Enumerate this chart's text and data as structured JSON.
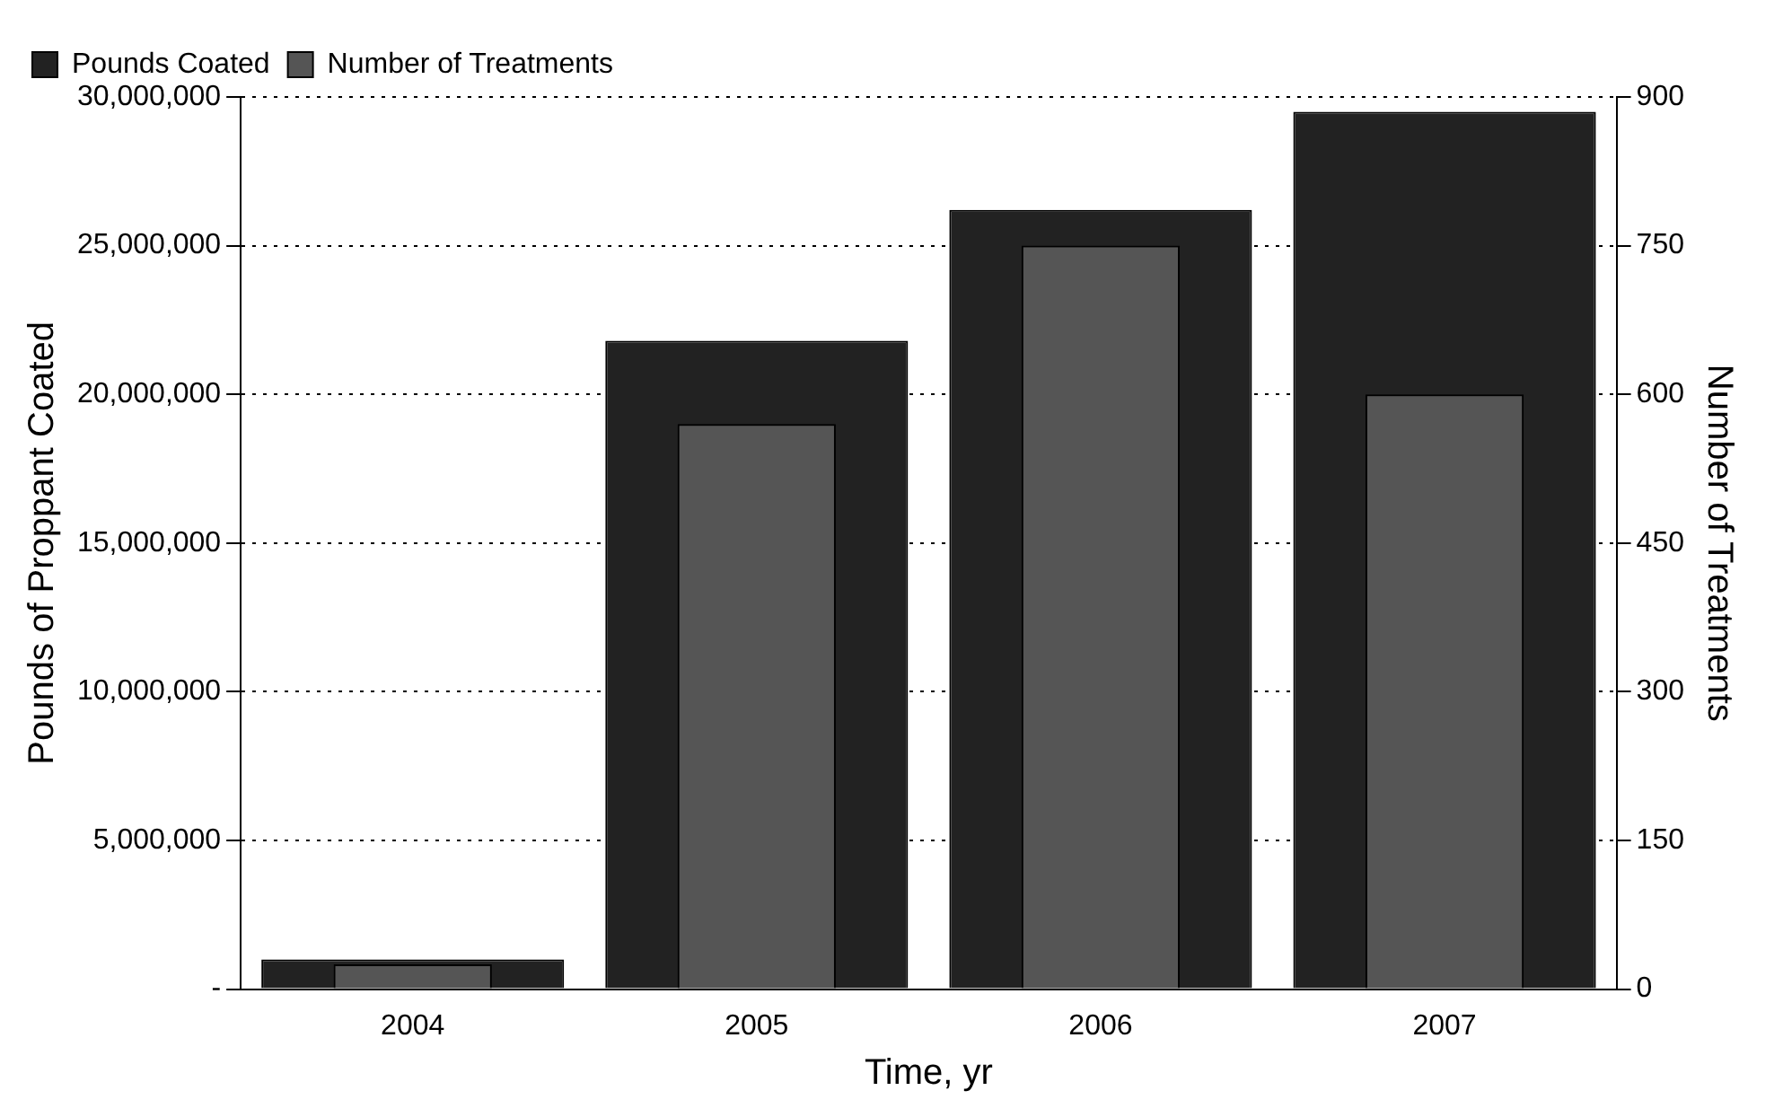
{
  "chart_data": {
    "type": "bar",
    "xlabel": "Time, yr",
    "ylabel": "Pounds of Proppant Coated",
    "y2label": "Number of Treatments",
    "categories": [
      "2004",
      "2005",
      "2006",
      "2007"
    ],
    "series": [
      {
        "name": "Pounds Coated",
        "color": "#222222",
        "values": [
          1000000,
          21800000,
          26200000,
          29500000
        ]
      },
      {
        "name": "Number of Treatments",
        "color": "#555555",
        "axis": "y2",
        "values": [
          25,
          570,
          750,
          600
        ]
      }
    ],
    "ylim": [
      0,
      30000000
    ],
    "yticks": [
      {
        "value": 0,
        "label": "-"
      },
      {
        "value": 5000000,
        "label": "5,000,000"
      },
      {
        "value": 10000000,
        "label": "10,000,000"
      },
      {
        "value": 15000000,
        "label": "15,000,000"
      },
      {
        "value": 20000000,
        "label": "20,000,000"
      },
      {
        "value": 25000000,
        "label": "25,000,000"
      },
      {
        "value": 30000000,
        "label": "30,000,000"
      }
    ],
    "y2lim": [
      0,
      900
    ],
    "y2ticks": [
      0,
      150,
      300,
      450,
      600,
      750,
      900
    ],
    "grid": "y",
    "line_style": "dotted",
    "legend": "top left"
  }
}
